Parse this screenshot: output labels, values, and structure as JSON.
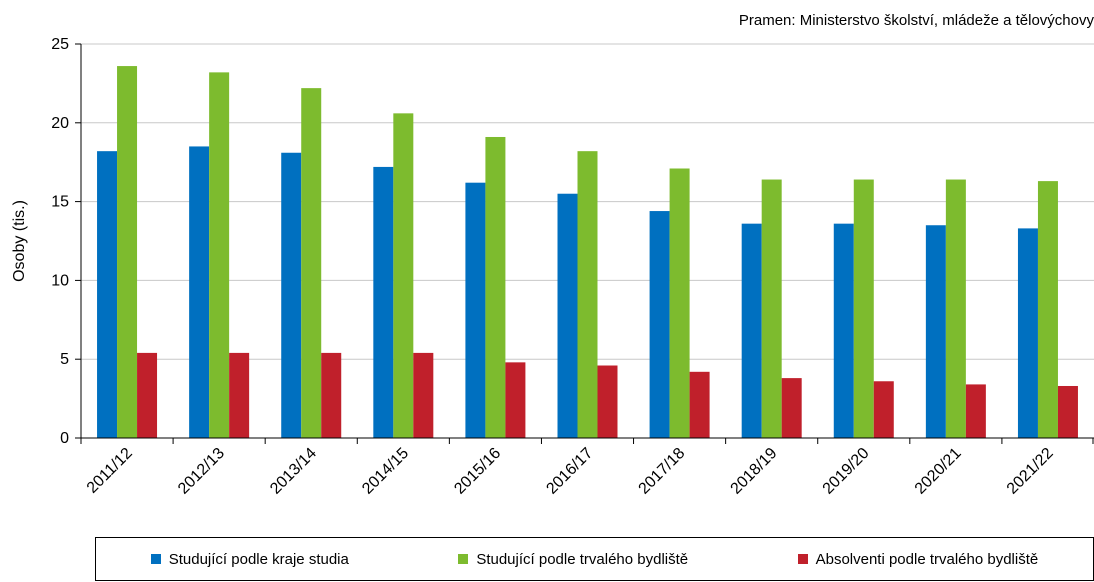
{
  "source": "Pramen: Ministerstvo školství, mládeže a tělovýchovy",
  "colors": {
    "series1": "#0070C0",
    "series2": "#7DBB2E",
    "series3": "#C0202B",
    "grid": "#C8C8C8",
    "axis": "#000000"
  },
  "chart_data": {
    "type": "bar",
    "title": "",
    "xlabel": "",
    "ylabel": "Osoby (tis.)",
    "ylim": [
      0,
      25
    ],
    "yticks": [
      0,
      5,
      10,
      15,
      20,
      25
    ],
    "grid": true,
    "legend_position": "bottom",
    "categories": [
      "2011/12",
      "2012/13",
      "2013/14",
      "2014/15",
      "2015/16",
      "2016/17",
      "2017/18",
      "2018/19",
      "2019/20",
      "2020/21",
      "2021/22"
    ],
    "series": [
      {
        "name": "Studující podle kraje studia",
        "color": "#0070C0",
        "values": [
          18.2,
          18.5,
          18.1,
          17.2,
          16.2,
          15.5,
          14.4,
          13.6,
          13.6,
          13.5,
          13.3
        ]
      },
      {
        "name": "Studující podle trvalého bydliště",
        "color": "#7DBB2E",
        "values": [
          23.6,
          23.2,
          22.2,
          20.6,
          19.1,
          18.2,
          17.1,
          16.4,
          16.4,
          16.4,
          16.3
        ]
      },
      {
        "name": "Absolventi podle trvalého bydliště",
        "color": "#C0202B",
        "values": [
          5.4,
          5.4,
          5.4,
          5.4,
          4.8,
          4.6,
          4.2,
          3.8,
          3.6,
          3.4,
          3.3
        ]
      }
    ]
  }
}
